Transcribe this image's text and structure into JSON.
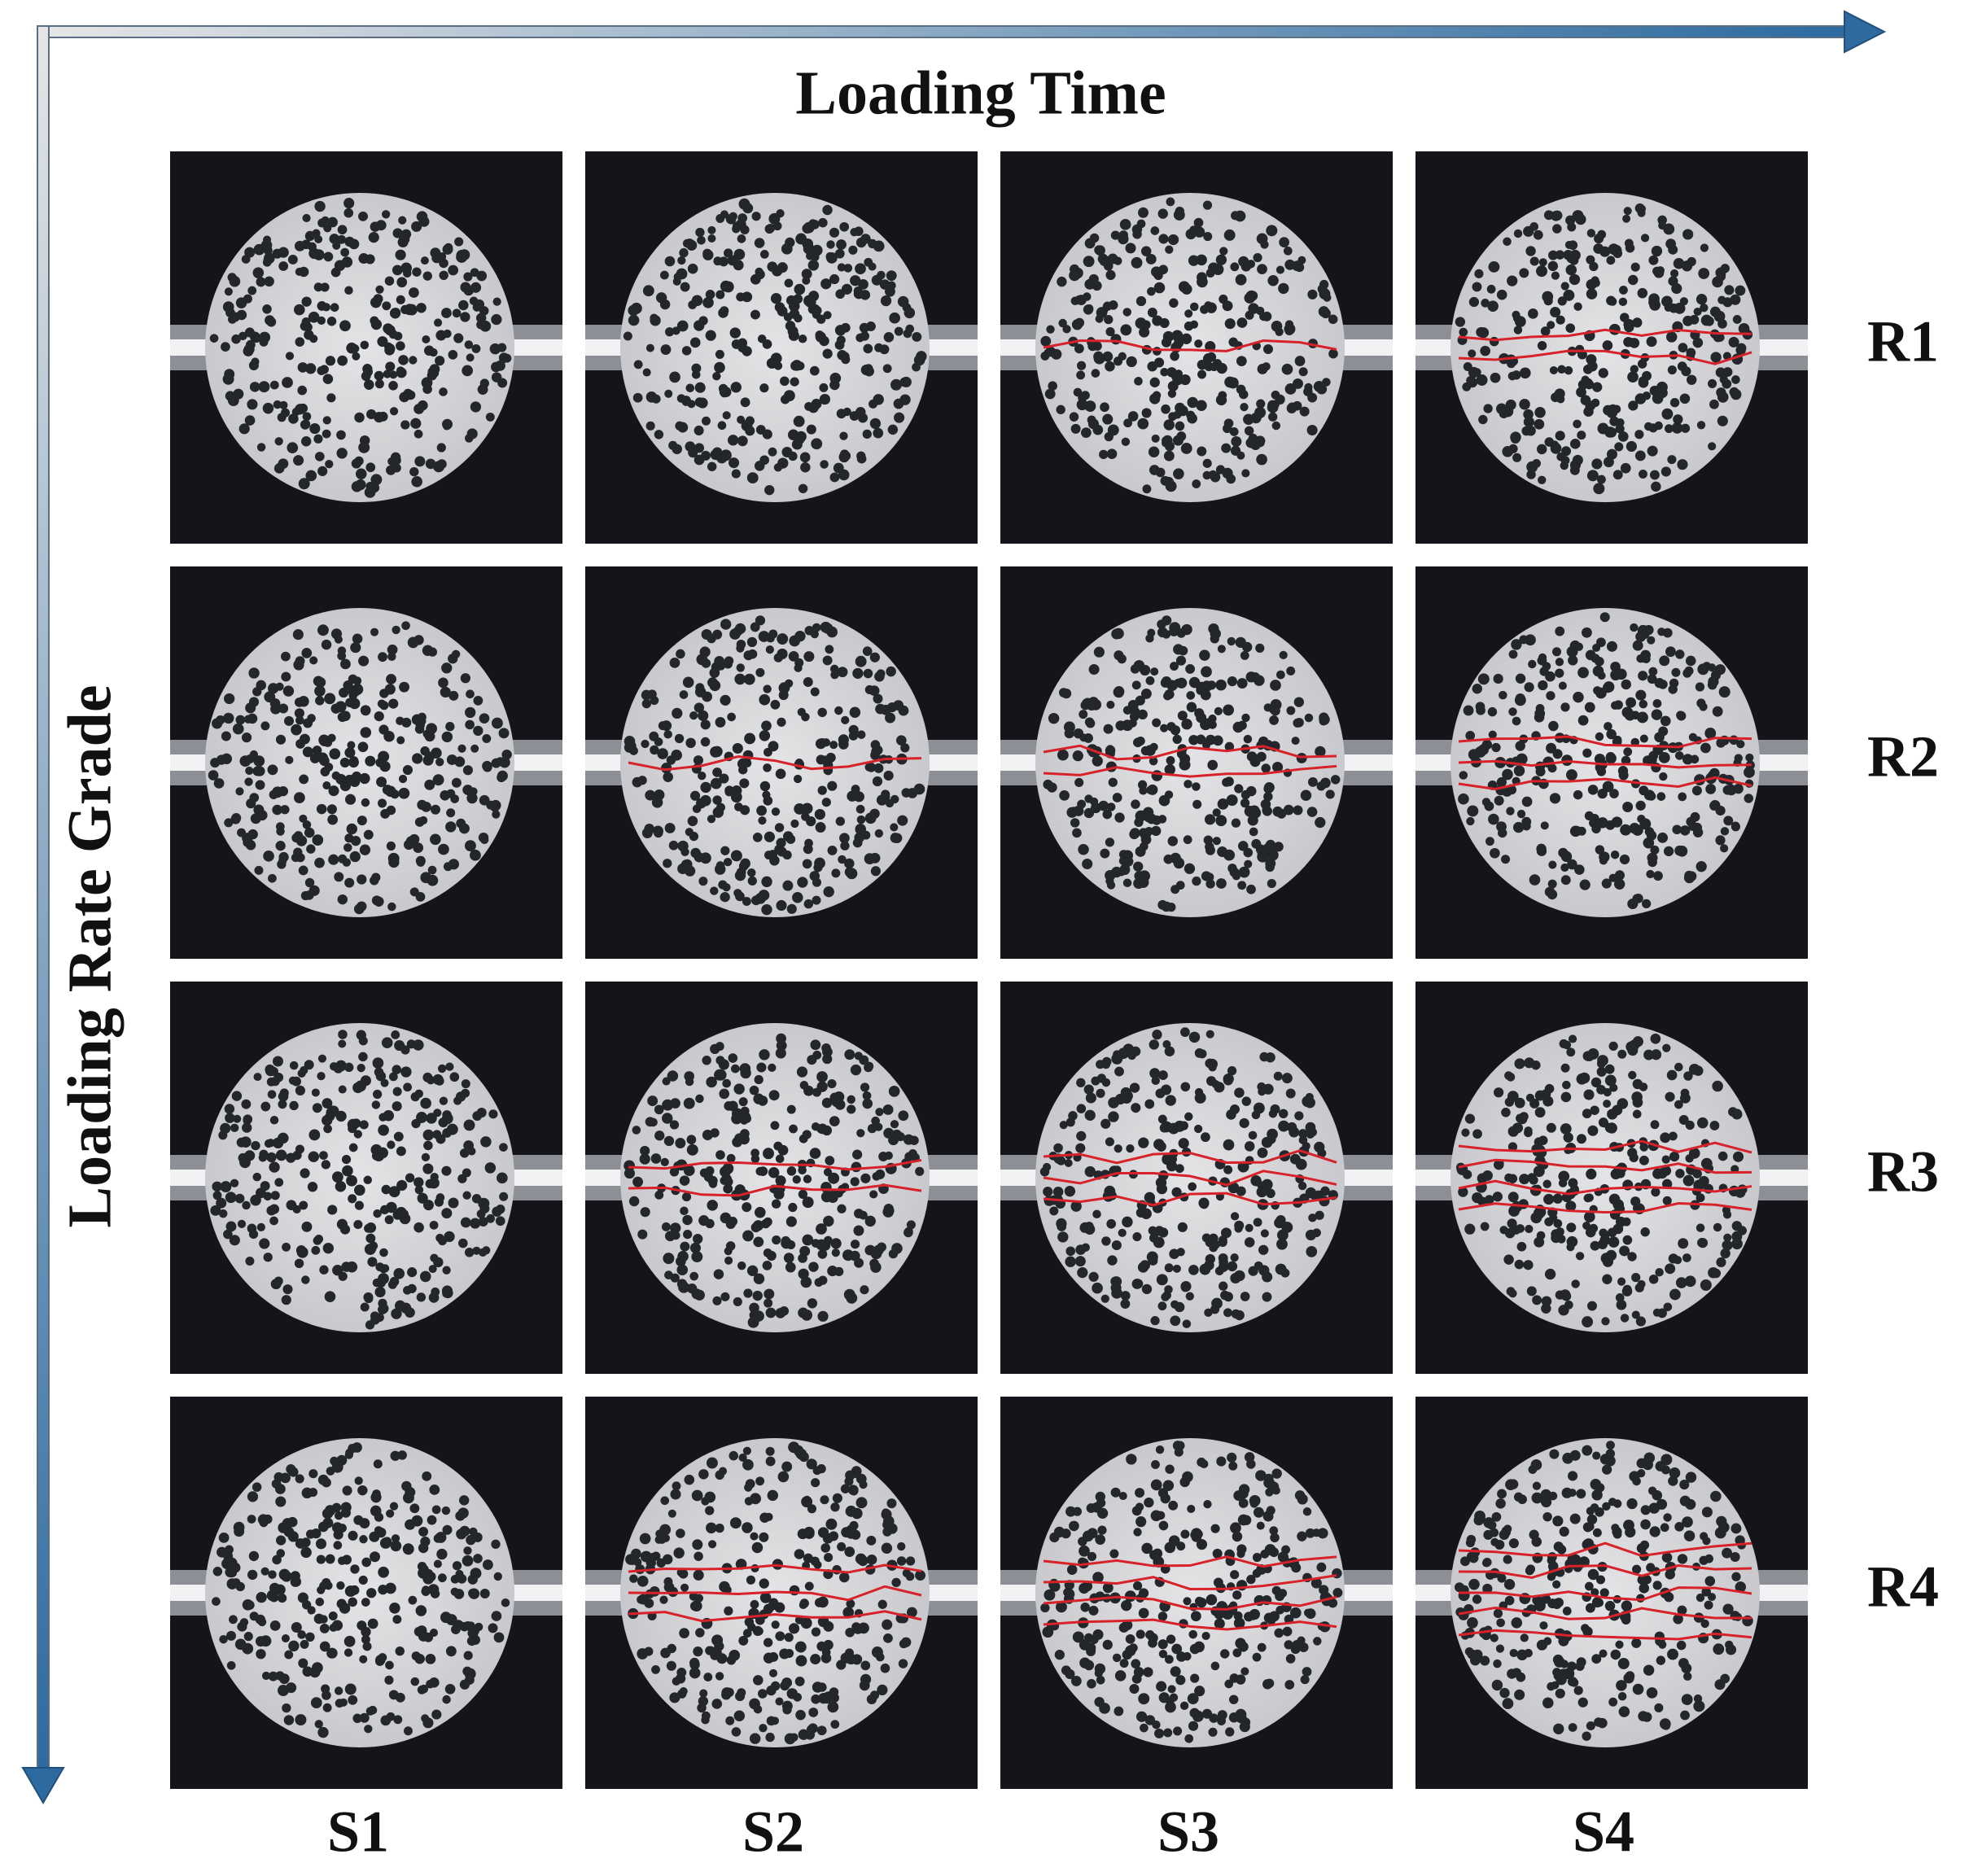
{
  "header": {
    "title": "Loading Time"
  },
  "axis": {
    "vertical_label": "Loading Rate Grade"
  },
  "columns": [
    "S1",
    "S2",
    "S3",
    "S4"
  ],
  "rows": [
    "R1",
    "R2",
    "R3",
    "R4"
  ]
}
